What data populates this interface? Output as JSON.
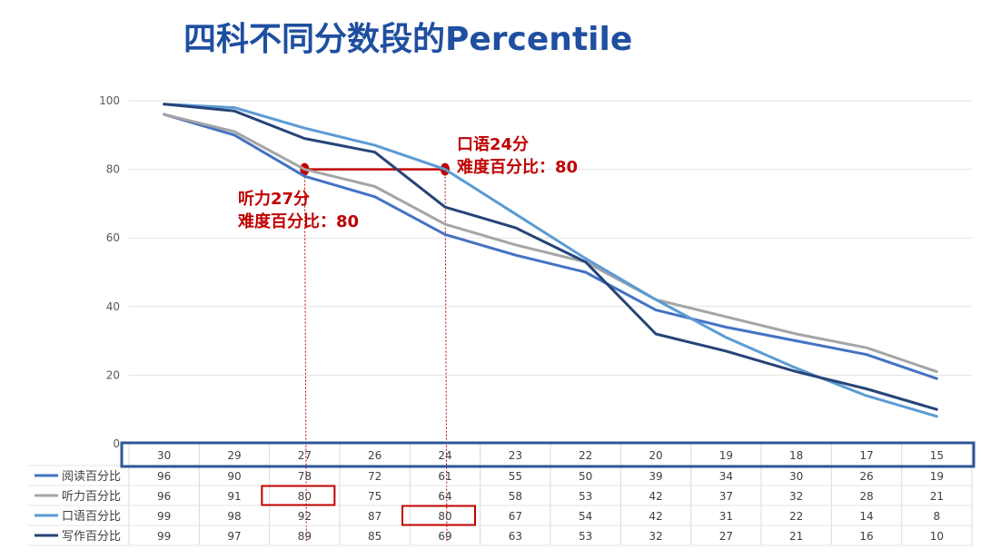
{
  "title": "四科不同分数段的Percentile",
  "annotations": {
    "listening_line1": "听力27分",
    "listening_line2": "难度百分比：80",
    "speaking_line1": "口语24分",
    "speaking_line2": "难度百分比：80"
  },
  "colors": {
    "reading": "#4472c4",
    "listening": "#a5a5a5",
    "speaking": "#5b9bd5",
    "writing": "#264478",
    "highlight": "#c00000",
    "axis_box": "#2f5597"
  },
  "chart_data": {
    "type": "line",
    "title": "四科不同分数段的Percentile",
    "x": [
      "30",
      "29",
      "27",
      "26",
      "24",
      "23",
      "22",
      "20",
      "19",
      "18",
      "17",
      "15"
    ],
    "ylim": [
      0,
      100
    ],
    "yticks": [
      0,
      20,
      40,
      60,
      80,
      100
    ],
    "grid": true,
    "legend": "data-table",
    "series": [
      {
        "name": "阅读百分比",
        "values": [
          96,
          90,
          78,
          72,
          61,
          55,
          50,
          39,
          34,
          30,
          26,
          19
        ]
      },
      {
        "name": "听力百分比",
        "values": [
          96,
          91,
          80,
          75,
          64,
          58,
          53,
          42,
          37,
          32,
          28,
          21
        ]
      },
      {
        "name": "口语百分比",
        "values": [
          99,
          98,
          92,
          87,
          80,
          67,
          54,
          42,
          31,
          22,
          14,
          8
        ]
      },
      {
        "name": "写作百分比",
        "values": [
          99,
          97,
          89,
          85,
          69,
          63,
          53,
          32,
          27,
          21,
          16,
          10
        ]
      }
    ],
    "highlights": [
      {
        "series": "听力百分比",
        "x": "27",
        "y": 80
      },
      {
        "series": "口语百分比",
        "x": "24",
        "y": 80
      }
    ]
  }
}
